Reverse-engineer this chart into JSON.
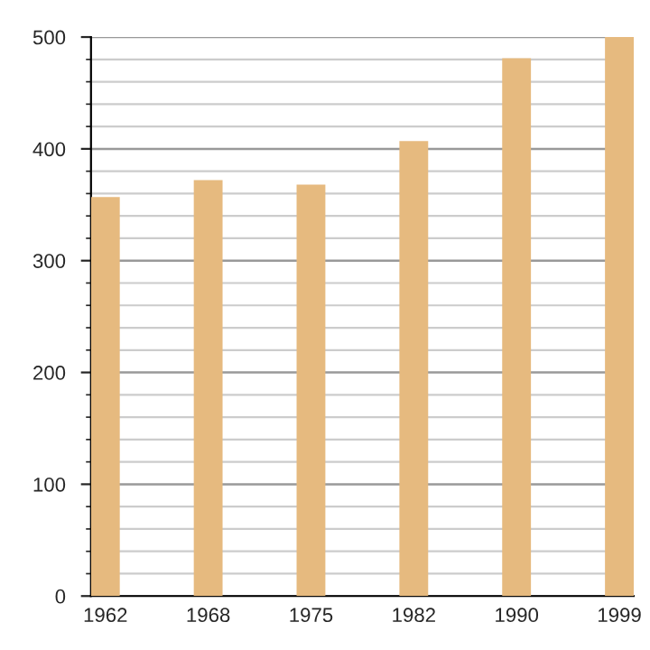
{
  "chart_data": {
    "type": "bar",
    "categories": [
      "1962",
      "1968",
      "1975",
      "1982",
      "1990",
      "1999"
    ],
    "values": [
      357,
      372,
      368,
      407,
      481,
      500
    ],
    "color": "#e6ba7f",
    "ylim": [
      0,
      500
    ],
    "yticks": [
      0,
      100,
      200,
      300,
      400,
      500
    ],
    "grid": "y"
  }
}
